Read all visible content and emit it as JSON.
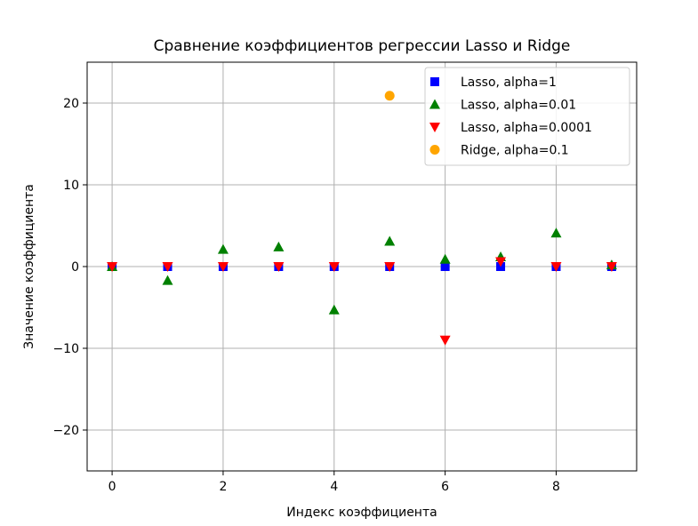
{
  "chart_data": {
    "type": "scatter",
    "title": "Сравнение коэффициентов регрессии Lasso и Ridge",
    "xlabel": "Индекс коэффициента",
    "ylabel": "Значение коэффициента",
    "xlim": [
      -0.45,
      9.45
    ],
    "ylim": [
      -25,
      25
    ],
    "xticks": [
      0,
      2,
      4,
      6,
      8
    ],
    "yticks": [
      -20,
      -10,
      0,
      10,
      20
    ],
    "grid": true,
    "legend_position": "top-right",
    "series": [
      {
        "name": "Lasso, alpha=1",
        "marker": "square",
        "color": "#0000ff",
        "x": [
          0,
          1,
          2,
          3,
          4,
          5,
          6,
          7,
          8,
          9
        ],
        "y": [
          0,
          0,
          0,
          0,
          0,
          0,
          0,
          0,
          0,
          0
        ]
      },
      {
        "name": "Lasso, alpha=0.01",
        "marker": "triangle-up",
        "color": "#008000",
        "x": [
          0,
          1,
          2,
          3,
          4,
          5,
          6,
          7,
          8,
          9
        ],
        "y": [
          0,
          -1.7,
          2.1,
          2.4,
          -5.3,
          3.1,
          0.9,
          1.2,
          4.1,
          0.2
        ]
      },
      {
        "name": "Lasso, alpha=0.0001",
        "marker": "triangle-down",
        "color": "#ff0000",
        "x": [
          0,
          1,
          2,
          3,
          4,
          5,
          6,
          7,
          8,
          9
        ],
        "y": [
          0,
          0,
          0,
          0,
          0,
          0,
          -9,
          0.6,
          0,
          0
        ]
      },
      {
        "name": "Ridge, alpha=0.1",
        "marker": "circle",
        "color": "#ffa500",
        "x": [
          5
        ],
        "y": [
          20.9
        ]
      }
    ]
  }
}
